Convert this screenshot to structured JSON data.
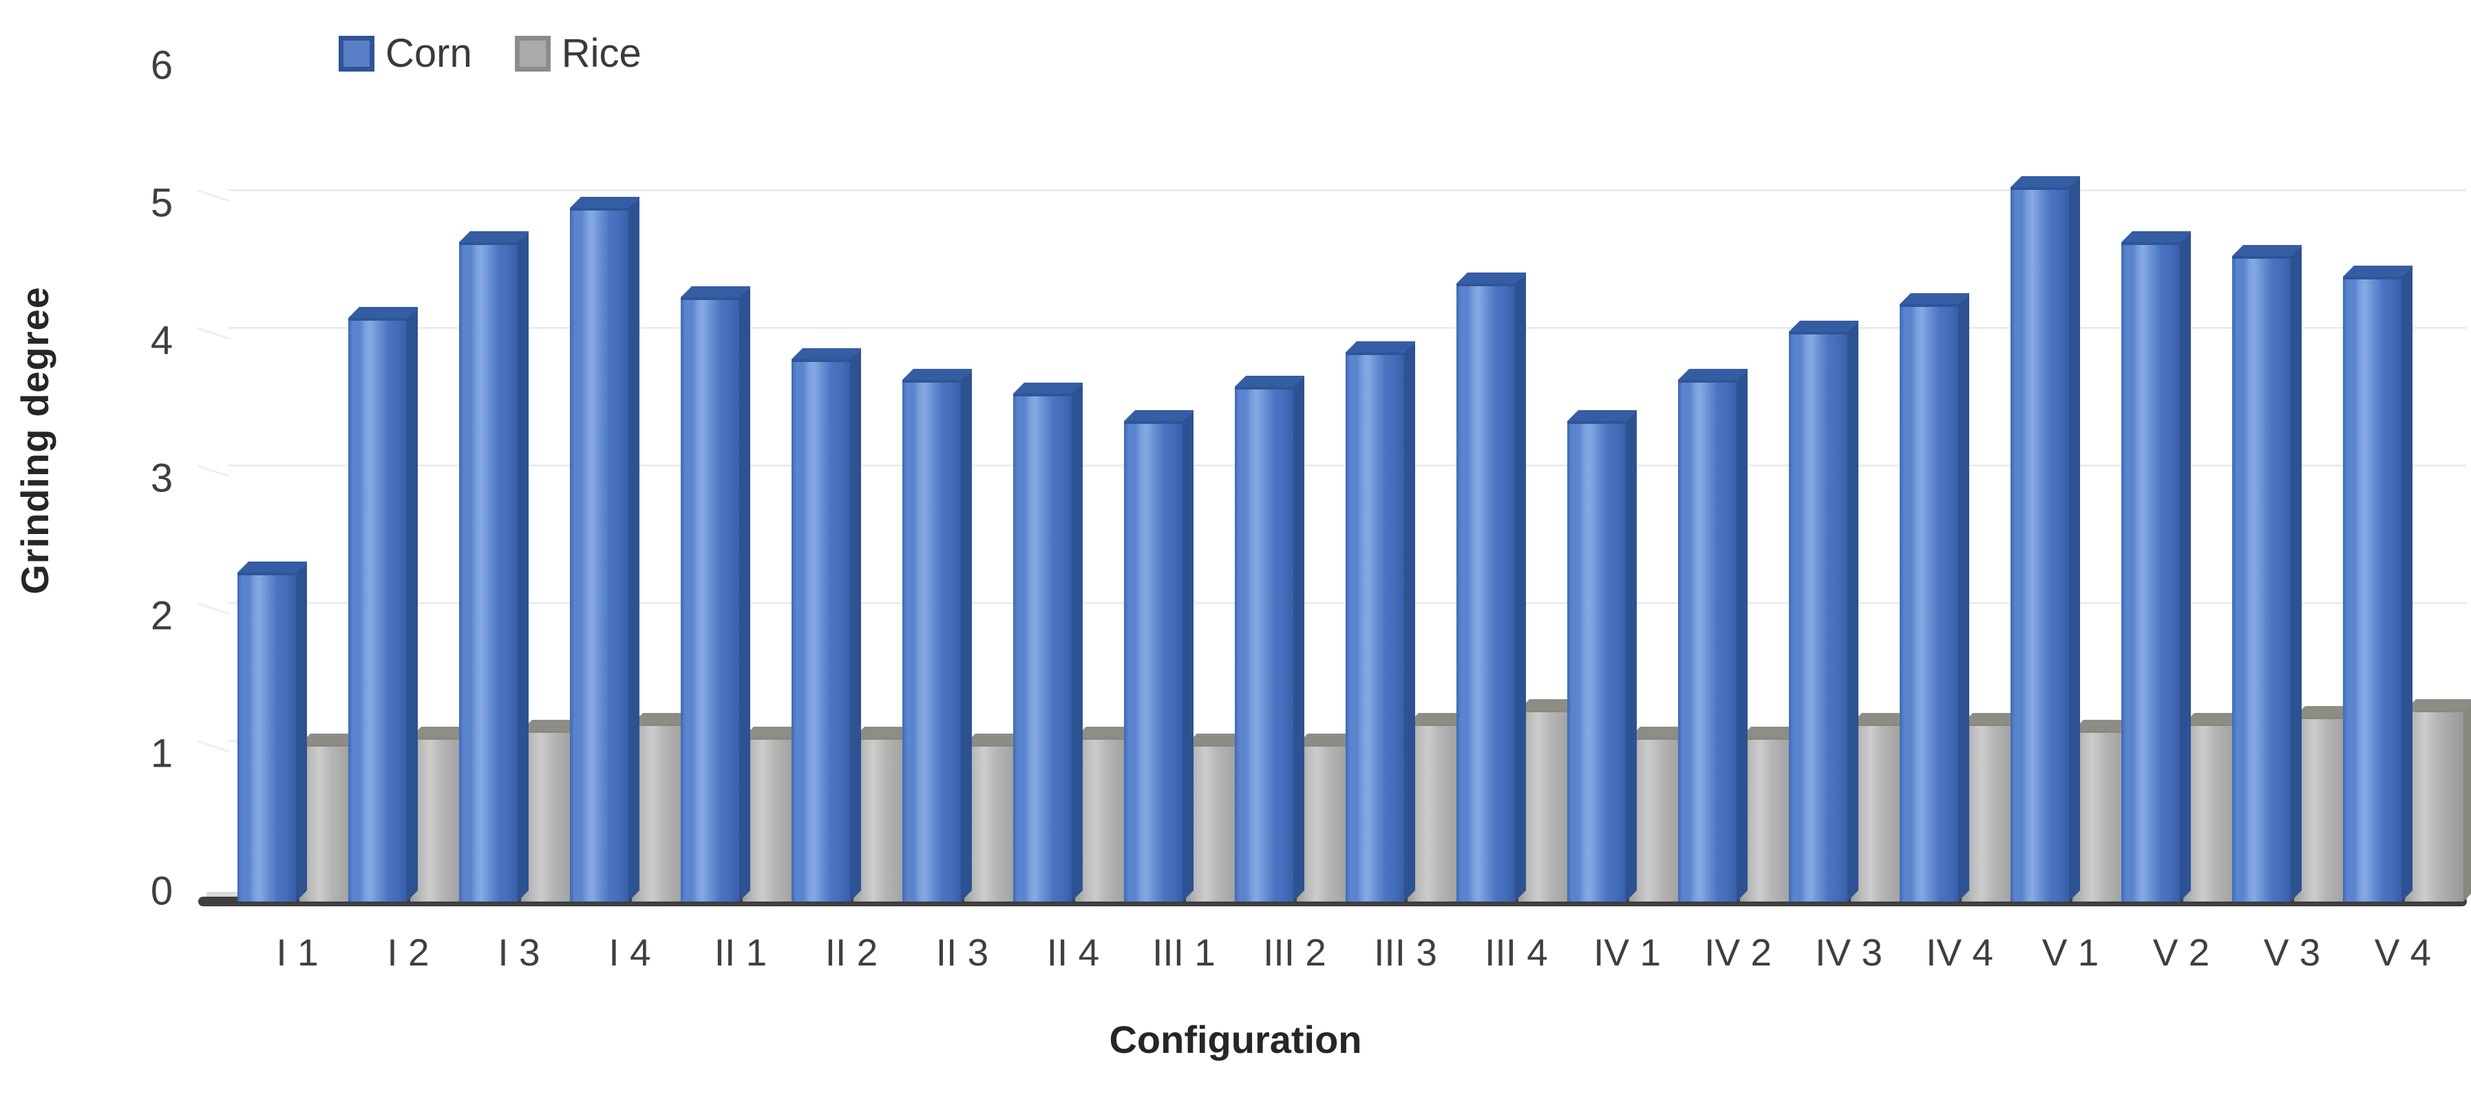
{
  "chart_data": {
    "type": "bar",
    "title": "",
    "xlabel": "Configuration",
    "ylabel": "Grinding degree",
    "ylim": [
      0,
      6
    ],
    "yticks": [
      0,
      1,
      2,
      3,
      4,
      5,
      6
    ],
    "grid": "horizontal-faint",
    "legend_position": "top-left",
    "categories": [
      "I 1",
      "I 2",
      "I 3",
      "I 4",
      "II 1",
      "II 2",
      "II 3",
      "II 4",
      "III 1",
      "III 2",
      "III 3",
      "III 4",
      "IV 1",
      "IV 2",
      "IV 3",
      "IV 4",
      "V 1",
      "V 2",
      "V 3",
      "V 4"
    ],
    "series": [
      {
        "name": "Corn",
        "color": "#4a74c2",
        "values": [
          2.3,
          4.15,
          4.7,
          4.95,
          4.3,
          3.85,
          3.7,
          3.6,
          3.4,
          3.65,
          3.9,
          4.4,
          3.4,
          3.7,
          4.05,
          4.25,
          5.1,
          4.7,
          4.6,
          4.45
        ]
      },
      {
        "name": "Rice",
        "color": "#ababab",
        "values": [
          1.05,
          1.1,
          1.15,
          1.2,
          1.1,
          1.1,
          1.05,
          1.1,
          1.05,
          1.05,
          1.2,
          1.3,
          1.1,
          1.1,
          1.2,
          1.2,
          1.15,
          1.2,
          1.25,
          1.3
        ]
      }
    ]
  },
  "legend": {
    "corn_label": "Corn",
    "rice_label": "Rice"
  },
  "axes": {
    "y_title": "Grinding degree",
    "x_title": "Configuration"
  },
  "colors": {
    "corn_fill": "#5b7fc7",
    "corn_border": "#2e5596",
    "rice_fill": "#ababab",
    "rice_border": "#8c8c8c",
    "axis_line": "#3f3f3f",
    "gridline": "#ececec",
    "tick_text": "#3f3f3f"
  }
}
